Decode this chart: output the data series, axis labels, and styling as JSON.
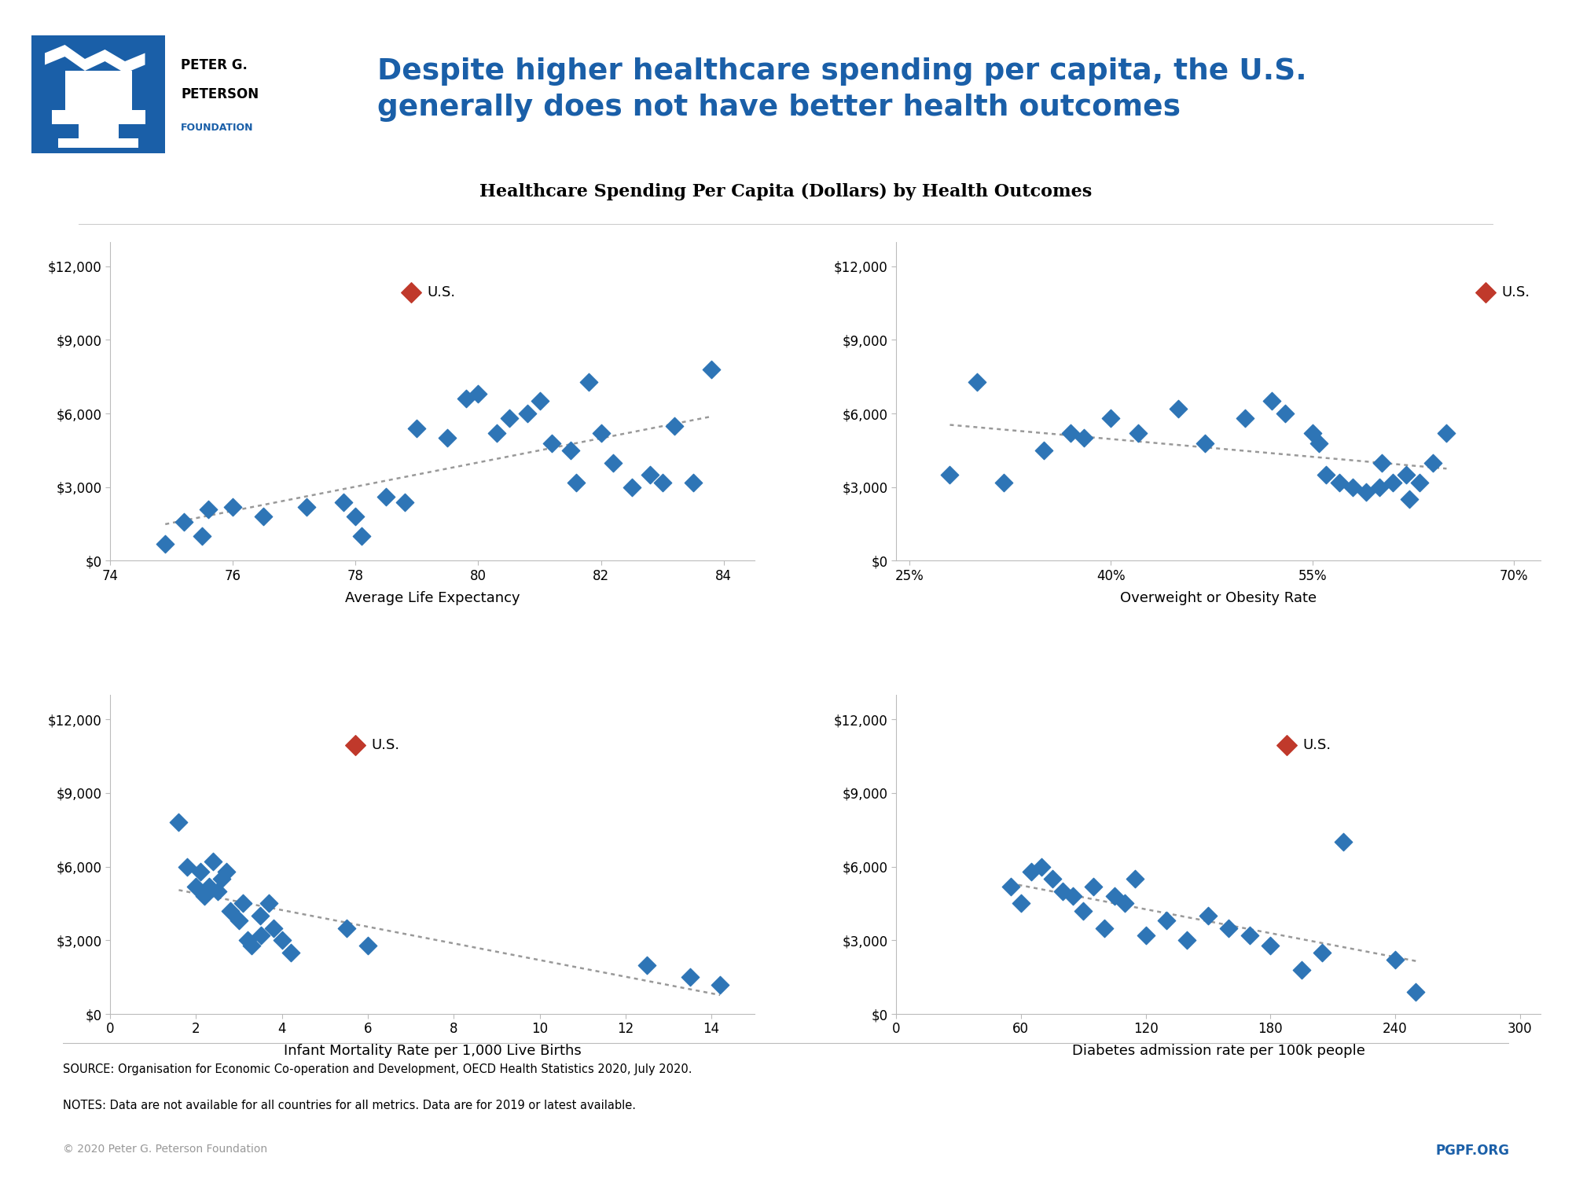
{
  "title_main": "Despite higher healthcare spending per capita, the U.S.\ngenerally does not have better health outcomes",
  "subtitle": "Healthcare Spending Per Capita (Dollars) by Health Outcomes",
  "source_line1": "SOURCE: Organisation for Economic Co-operation and Development, OECD Health Statistics 2020, July 2020.",
  "source_line2": "NOTES: Data are not available for all countries for all metrics. Data are for 2019 or latest available.",
  "copyright_text": "© 2020 Peter G. Peterson Foundation",
  "pgpf_text": "PGPF.ORG",
  "blue_color": "#1a5fa8",
  "red_color": "#c0392b",
  "dot_blue": "#2e75b6",
  "title_color": "#1a5fa8",
  "ytick_labels": [
    "$0",
    "$3,000",
    "$6,000",
    "$9,000",
    "$12,000"
  ],
  "plot1": {
    "xlabel": "Average Life Expectancy",
    "us_x": 78.9,
    "us_y": 10948,
    "xlim": [
      74,
      84.5
    ],
    "xticks": [
      74,
      76,
      78,
      80,
      82,
      84
    ],
    "xtick_labels": [
      "74",
      "76",
      "78",
      "80",
      "82",
      "84"
    ],
    "ylim": [
      0,
      13000
    ],
    "yticks": [
      0,
      3000,
      6000,
      9000,
      12000
    ],
    "world_x": [
      74.9,
      75.2,
      75.5,
      75.6,
      76.0,
      76.5,
      77.2,
      77.8,
      78.0,
      78.1,
      78.5,
      78.8,
      79.0,
      79.5,
      79.8,
      80.0,
      80.3,
      80.5,
      80.8,
      81.0,
      81.2,
      81.5,
      81.6,
      81.8,
      82.0,
      82.2,
      82.5,
      82.8,
      83.0,
      83.2,
      83.5,
      83.8
    ],
    "world_y": [
      700,
      1600,
      1000,
      2100,
      2200,
      1800,
      2200,
      2400,
      1800,
      1000,
      2600,
      2400,
      5400,
      5000,
      6600,
      6800,
      5200,
      5800,
      6000,
      6500,
      4800,
      4500,
      3200,
      7300,
      5200,
      4000,
      3000,
      3500,
      3200,
      5500,
      3200,
      7800
    ]
  },
  "plot2": {
    "xlabel": "Overweight or Obesity Rate",
    "us_x": 0.679,
    "us_y": 10948,
    "xlim": [
      0.24,
      0.72
    ],
    "xticks": [
      0.25,
      0.4,
      0.55,
      0.7
    ],
    "xtick_labels": [
      "25%",
      "40%",
      "55%",
      "70%"
    ],
    "ylim": [
      0,
      13000
    ],
    "yticks": [
      0,
      3000,
      6000,
      9000,
      12000
    ],
    "world_x": [
      0.28,
      0.3,
      0.32,
      0.35,
      0.37,
      0.38,
      0.4,
      0.42,
      0.45,
      0.47,
      0.5,
      0.52,
      0.53,
      0.55,
      0.555,
      0.56,
      0.57,
      0.58,
      0.59,
      0.6,
      0.602,
      0.61,
      0.62,
      0.622,
      0.63,
      0.64,
      0.65
    ],
    "world_y": [
      3500,
      7300,
      3200,
      4500,
      5200,
      5000,
      5800,
      5200,
      6200,
      4800,
      5800,
      6500,
      6000,
      5200,
      4800,
      3500,
      3200,
      3000,
      2800,
      3000,
      4000,
      3200,
      3500,
      2500,
      3200,
      4000,
      5200
    ]
  },
  "plot3": {
    "xlabel": "Infant Mortality Rate per 1,000 Live Births",
    "us_x": 5.7,
    "us_y": 10948,
    "xlim": [
      0,
      15
    ],
    "xticks": [
      0,
      2,
      4,
      6,
      8,
      10,
      12,
      14
    ],
    "xtick_labels": [
      "0",
      "2",
      "4",
      "6",
      "8",
      "10",
      "12",
      "14"
    ],
    "ylim": [
      0,
      13000
    ],
    "yticks": [
      0,
      3000,
      6000,
      9000,
      12000
    ],
    "world_x": [
      1.6,
      1.8,
      2.0,
      2.1,
      2.2,
      2.3,
      2.4,
      2.5,
      2.6,
      2.7,
      2.8,
      3.0,
      3.1,
      3.2,
      3.3,
      3.5,
      3.52,
      3.7,
      3.8,
      4.0,
      4.2,
      5.5,
      6.0,
      12.5,
      13.5,
      14.2
    ],
    "world_y": [
      7800,
      6000,
      5200,
      5800,
      4800,
      5200,
      6200,
      5000,
      5500,
      5800,
      4200,
      3800,
      4500,
      3000,
      2800,
      4000,
      3200,
      4500,
      3500,
      3000,
      2500,
      3500,
      2800,
      2000,
      1500,
      1200
    ]
  },
  "plot4": {
    "xlabel": "Diabetes admission rate per 100k people",
    "us_x": 188,
    "us_y": 10948,
    "xlim": [
      0,
      310
    ],
    "xticks": [
      0,
      60,
      120,
      180,
      240,
      300
    ],
    "xtick_labels": [
      "0",
      "60",
      "120",
      "180",
      "240",
      "300"
    ],
    "ylim": [
      0,
      13000
    ],
    "yticks": [
      0,
      3000,
      6000,
      9000,
      12000
    ],
    "world_x": [
      55,
      60,
      65,
      70,
      75,
      80,
      85,
      90,
      95,
      100,
      105,
      110,
      115,
      120,
      130,
      140,
      150,
      160,
      170,
      180,
      195,
      205,
      215,
      240,
      250
    ],
    "world_y": [
      5200,
      4500,
      5800,
      6000,
      5500,
      5000,
      4800,
      4200,
      5200,
      3500,
      4800,
      4500,
      5500,
      3200,
      3800,
      3000,
      4000,
      3500,
      3200,
      2800,
      1800,
      2500,
      7000,
      2200,
      900
    ]
  }
}
